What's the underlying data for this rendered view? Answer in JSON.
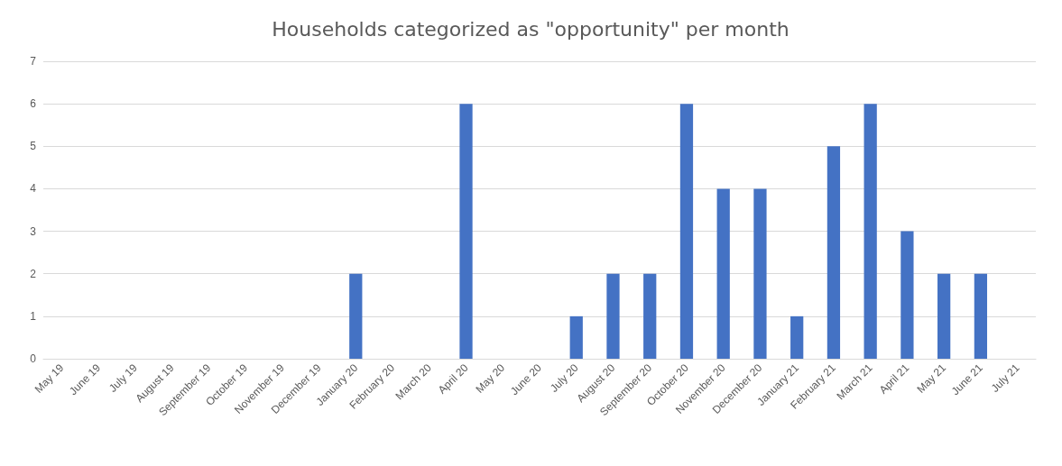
{
  "chart_data": {
    "type": "bar",
    "title": "Households categorized as \"opportunity\" per month",
    "categories": [
      "May 19",
      "June 19",
      "July 19",
      "August 19",
      "September 19",
      "October 19",
      "November 19",
      "December 19",
      "January 20",
      "February 20",
      "March 20",
      "April 20",
      "May 20",
      "June 20",
      "July 20",
      "August 20",
      "September 20",
      "October 20",
      "November 20",
      "December 20",
      "January 21",
      "February 21",
      "March 21",
      "April 21",
      "May 21",
      "June 21",
      "July 21"
    ],
    "values": [
      0,
      0,
      0,
      0,
      0,
      0,
      0,
      0,
      2,
      0,
      0,
      6,
      0,
      0,
      1,
      2,
      2,
      6,
      4,
      4,
      1,
      5,
      6,
      3,
      2,
      2,
      0
    ],
    "color": "#4472c4",
    "ylim": [
      0,
      7
    ],
    "yticks": [
      0,
      1,
      2,
      3,
      4,
      5,
      6,
      7
    ],
    "grid": "y"
  }
}
